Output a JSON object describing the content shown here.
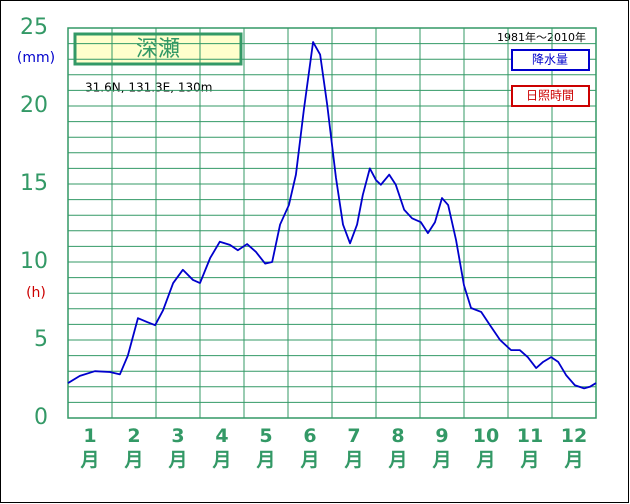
{
  "chart_data": {
    "type": "line",
    "title": "深瀬",
    "subtitle": "31.6N,  131.3E,  130m",
    "period": "1981年〜2010年",
    "y_unit_labels": [
      {
        "text": "(mm)",
        "color": "#0000cc"
      },
      {
        "text": "(h)",
        "color": "#cc0000"
      }
    ],
    "categories": [
      "1月",
      "2月",
      "3月",
      "4月",
      "5月",
      "6月",
      "7月",
      "8月",
      "9月",
      "10月",
      "11月",
      "12月"
    ],
    "xlim": [
      0,
      12
    ],
    "xticks": [
      0,
      1,
      2,
      3,
      4,
      5,
      6,
      7,
      8,
      9,
      10,
      11,
      12
    ],
    "ylim": [
      0,
      25
    ],
    "yticks": [
      0,
      5,
      10,
      15,
      20,
      25
    ],
    "y_minor_step": 1,
    "grid": true,
    "series": [
      {
        "name": "降水量",
        "color": "#0000cc",
        "x": [
          0,
          0.27,
          0.61,
          0.95,
          1.18,
          1.36,
          1.59,
          1.8,
          1.98,
          2.16,
          2.39,
          2.61,
          2.84,
          3.0,
          3.23,
          3.45,
          3.68,
          3.86,
          4.07,
          4.27,
          4.48,
          4.64,
          4.82,
          5.02,
          5.18,
          5.36,
          5.57,
          5.73,
          5.89,
          6.09,
          6.25,
          6.41,
          6.57,
          6.7,
          6.86,
          7.0,
          7.11,
          7.3,
          7.45,
          7.64,
          7.82,
          8.02,
          8.18,
          8.34,
          8.5,
          8.64,
          8.82,
          9.0,
          9.16,
          9.39,
          9.59,
          9.82,
          10.07,
          10.27,
          10.45,
          10.64,
          10.8,
          10.98,
          11.14,
          11.32,
          11.52,
          11.73,
          11.86,
          12.0
        ],
        "values": [
          2.24,
          2.7,
          3.0,
          2.95,
          2.8,
          4.0,
          6.4,
          6.15,
          5.95,
          6.9,
          8.65,
          9.5,
          8.85,
          8.65,
          10.25,
          11.3,
          11.1,
          10.75,
          11.15,
          10.65,
          9.9,
          10.0,
          12.4,
          13.65,
          15.6,
          19.75,
          24.1,
          23.3,
          20.1,
          15.4,
          12.4,
          11.2,
          12.4,
          14.3,
          16.0,
          15.25,
          14.95,
          15.6,
          14.95,
          13.35,
          12.8,
          12.55,
          11.85,
          12.55,
          14.1,
          13.65,
          11.4,
          8.5,
          7.05,
          6.8,
          5.95,
          5.0,
          4.35,
          4.35,
          3.9,
          3.2,
          3.6,
          3.9,
          3.6,
          2.75,
          2.1,
          1.9,
          2.0,
          2.24
        ]
      }
    ],
    "legend_extra": [
      {
        "name": "日照時間",
        "color": "#cc0000"
      }
    ]
  }
}
